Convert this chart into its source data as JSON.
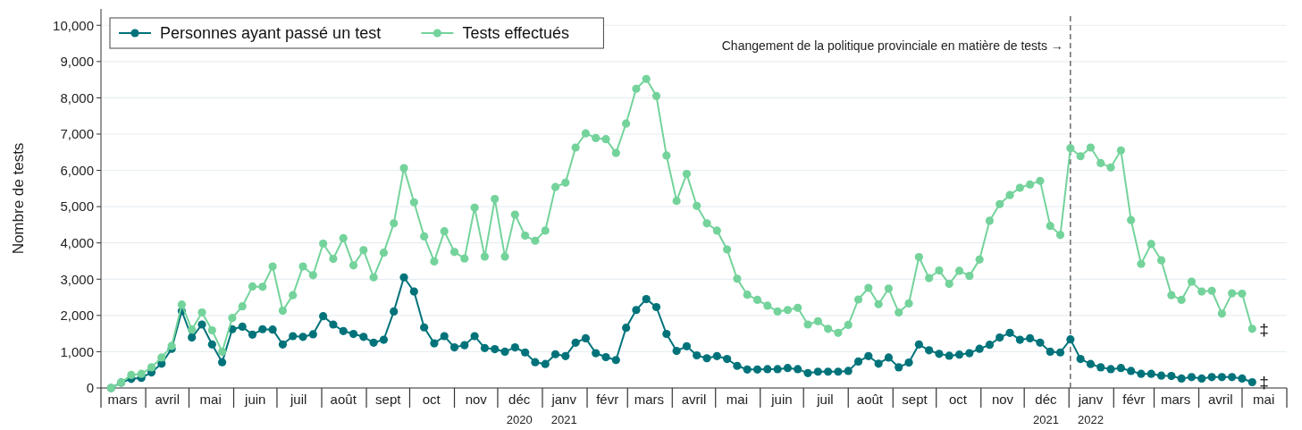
{
  "chart_data": {
    "type": "line",
    "ylabel": "Nombre de tests",
    "x": [
      "2020-03-08",
      "2020-03-15",
      "2020-03-22",
      "2020-03-29",
      "2020-04-05",
      "2020-04-12",
      "2020-04-19",
      "2020-04-26",
      "2020-05-03",
      "2020-05-10",
      "2020-05-17",
      "2020-05-24",
      "2020-05-31",
      "2020-06-07",
      "2020-06-14",
      "2020-06-21",
      "2020-06-28",
      "2020-07-05",
      "2020-07-12",
      "2020-07-19",
      "2020-07-26",
      "2020-08-02",
      "2020-08-09",
      "2020-08-16",
      "2020-08-23",
      "2020-08-30",
      "2020-09-06",
      "2020-09-13",
      "2020-09-20",
      "2020-09-27",
      "2020-10-04",
      "2020-10-11",
      "2020-10-18",
      "2020-10-25",
      "2020-11-01",
      "2020-11-08",
      "2020-11-15",
      "2020-11-22",
      "2020-11-29",
      "2020-12-06",
      "2020-12-13",
      "2020-12-20",
      "2020-12-27",
      "2021-01-03",
      "2021-01-10",
      "2021-01-17",
      "2021-01-24",
      "2021-01-31",
      "2021-02-07",
      "2021-02-14",
      "2021-02-21",
      "2021-02-28",
      "2021-03-07",
      "2021-03-14",
      "2021-03-21",
      "2021-03-28",
      "2021-04-04",
      "2021-04-11",
      "2021-04-18",
      "2021-04-25",
      "2021-05-02",
      "2021-05-09",
      "2021-05-16",
      "2021-05-23",
      "2021-05-30",
      "2021-06-06",
      "2021-06-13",
      "2021-06-20",
      "2021-06-27",
      "2021-07-04",
      "2021-07-11",
      "2021-07-18",
      "2021-07-25",
      "2021-08-01",
      "2021-08-08",
      "2021-08-15",
      "2021-08-22",
      "2021-08-29",
      "2021-09-05",
      "2021-09-12",
      "2021-09-19",
      "2021-09-26",
      "2021-10-03",
      "2021-10-10",
      "2021-10-17",
      "2021-10-24",
      "2021-10-31",
      "2021-11-07",
      "2021-11-14",
      "2021-11-21",
      "2021-11-28",
      "2021-12-05",
      "2021-12-12",
      "2021-12-19",
      "2021-12-26",
      "2022-01-02",
      "2022-01-09",
      "2022-01-16",
      "2022-01-23",
      "2022-01-30",
      "2022-02-06",
      "2022-02-13",
      "2022-02-20",
      "2022-02-27",
      "2022-03-06",
      "2022-03-13",
      "2022-03-20",
      "2022-03-27",
      "2022-04-03",
      "2022-04-10",
      "2022-04-17",
      "2022-04-24",
      "2022-05-01",
      "2022-05-08"
    ],
    "series": [
      {
        "name": "Personnes ayant passé un test",
        "color": "#00737a",
        "values": [
          0,
          150,
          250,
          280,
          430,
          670,
          1080,
          2120,
          1390,
          1750,
          1200,
          710,
          1620,
          1690,
          1470,
          1620,
          1610,
          1200,
          1430,
          1410,
          1480,
          1980,
          1750,
          1570,
          1490,
          1410,
          1250,
          1330,
          2110,
          3050,
          2660,
          1670,
          1230,
          1430,
          1120,
          1180,
          1430,
          1100,
          1070,
          1000,
          1120,
          980,
          710,
          660,
          930,
          880,
          1250,
          1370,
          960,
          850,
          770,
          1660,
          2150,
          2450,
          2230,
          1490,
          1020,
          1150,
          900,
          820,
          880,
          800,
          610,
          510,
          510,
          520,
          520,
          550,
          520,
          410,
          450,
          450,
          450,
          470,
          730,
          880,
          670,
          840,
          570,
          700,
          1200,
          1040,
          940,
          890,
          920,
          960,
          1080,
          1190,
          1390,
          1520,
          1330,
          1370,
          1250,
          1000,
          980,
          1340,
          800,
          660,
          570,
          520,
          550,
          470,
          390,
          390,
          340,
          330,
          260,
          300,
          260,
          300,
          300,
          300,
          260,
          160
        ]
      },
      {
        "name": "Tests effectués",
        "color": "#74d39b",
        "values": [
          0,
          150,
          360,
          390,
          570,
          840,
          1160,
          2300,
          1610,
          2080,
          1590,
          1000,
          1930,
          2250,
          2800,
          2790,
          3350,
          2130,
          2560,
          3350,
          3110,
          3980,
          3560,
          4130,
          3380,
          3800,
          3050,
          3730,
          4540,
          6060,
          5120,
          4180,
          3490,
          4320,
          3750,
          3570,
          4970,
          3620,
          5210,
          3620,
          4780,
          4200,
          4060,
          4340,
          5540,
          5660,
          6630,
          7020,
          6890,
          6860,
          6480,
          7290,
          8250,
          8520,
          8050,
          6410,
          5160,
          5900,
          5020,
          4540,
          4340,
          3820,
          3010,
          2570,
          2430,
          2270,
          2110,
          2150,
          2210,
          1750,
          1840,
          1630,
          1520,
          1740,
          2440,
          2760,
          2310,
          2740,
          2080,
          2330,
          3610,
          3030,
          3240,
          2870,
          3230,
          3090,
          3540,
          4610,
          5070,
          5320,
          5520,
          5610,
          5710,
          4470,
          4220,
          6610,
          6390,
          6630,
          6200,
          6080,
          6550,
          4630,
          3420,
          3970,
          3520,
          2560,
          2430,
          2930,
          2660,
          2680,
          2050,
          2610,
          2600,
          1630
        ]
      }
    ],
    "xlim": [
      "2020-03-01",
      "2022-06-01"
    ],
    "xticks": [
      {
        "value": "2020-03-01",
        "label": null
      },
      {
        "value": "2020-03-16",
        "label": "mars"
      },
      {
        "value": "2020-04-01",
        "label": null
      },
      {
        "value": "2020-04-16",
        "label": "avril"
      },
      {
        "value": "2020-05-01",
        "label": null
      },
      {
        "value": "2020-05-16",
        "label": "mai"
      },
      {
        "value": "2020-06-01",
        "label": null
      },
      {
        "value": "2020-06-16",
        "label": "juin"
      },
      {
        "value": "2020-07-01",
        "label": null
      },
      {
        "value": "2020-07-16",
        "label": "juil"
      },
      {
        "value": "2020-08-01",
        "label": null
      },
      {
        "value": "2020-08-16",
        "label": "août"
      },
      {
        "value": "2020-09-01",
        "label": null
      },
      {
        "value": "2020-09-16",
        "label": "sept"
      },
      {
        "value": "2020-10-01",
        "label": null
      },
      {
        "value": "2020-10-16",
        "label": "oct"
      },
      {
        "value": "2020-11-01",
        "label": null
      },
      {
        "value": "2020-11-16",
        "label": "nov"
      },
      {
        "value": "2020-12-01",
        "label": null
      },
      {
        "value": "2020-12-16",
        "label": "déc\n2020"
      },
      {
        "value": "2021-01-01",
        "label": null
      },
      {
        "value": "2021-01-16",
        "label": "janv\n2021"
      },
      {
        "value": "2021-02-01",
        "label": null
      },
      {
        "value": "2021-02-15",
        "label": "févr"
      },
      {
        "value": "2021-03-01",
        "label": null
      },
      {
        "value": "2021-03-16",
        "label": "mars"
      },
      {
        "value": "2021-04-01",
        "label": null
      },
      {
        "value": "2021-04-16",
        "label": "avril"
      },
      {
        "value": "2021-05-01",
        "label": null
      },
      {
        "value": "2021-05-16",
        "label": "mai"
      },
      {
        "value": "2021-06-01",
        "label": null
      },
      {
        "value": "2021-06-16",
        "label": "juin"
      },
      {
        "value": "2021-07-01",
        "label": null
      },
      {
        "value": "2021-07-16",
        "label": "juil"
      },
      {
        "value": "2021-08-01",
        "label": null
      },
      {
        "value": "2021-08-16",
        "label": "août"
      },
      {
        "value": "2021-09-01",
        "label": null
      },
      {
        "value": "2021-09-16",
        "label": "sept"
      },
      {
        "value": "2021-10-01",
        "label": null
      },
      {
        "value": "2021-10-16",
        "label": "oct"
      },
      {
        "value": "2021-11-01",
        "label": null
      },
      {
        "value": "2021-11-16",
        "label": "nov"
      },
      {
        "value": "2021-12-01",
        "label": null
      },
      {
        "value": "2021-12-16",
        "label": "déc\n2021"
      },
      {
        "value": "2022-01-01",
        "label": null
      },
      {
        "value": "2022-01-16",
        "label": "janv\n2022"
      },
      {
        "value": "2022-02-01",
        "label": null
      },
      {
        "value": "2022-02-15",
        "label": "févr"
      },
      {
        "value": "2022-03-01",
        "label": null
      },
      {
        "value": "2022-03-16",
        "label": "mars"
      },
      {
        "value": "2022-04-01",
        "label": null
      },
      {
        "value": "2022-04-16",
        "label": "avril"
      },
      {
        "value": "2022-05-01",
        "label": null
      },
      {
        "value": "2022-05-16",
        "label": "mai"
      },
      {
        "value": "2022-06-01",
        "label": null
      }
    ],
    "ylim": [
      0,
      10450
    ],
    "yticks": [
      0,
      {
        "value": 1000,
        "label": "1,000"
      },
      {
        "value": 2000,
        "label": "2,000"
      },
      {
        "value": 3000,
        "label": "3,000"
      },
      {
        "value": 4000,
        "label": "4,000"
      },
      {
        "value": 5000,
        "label": "5,000"
      },
      {
        "value": 6000,
        "label": "6,000"
      },
      {
        "value": 7000,
        "label": "7,000"
      },
      {
        "value": 8000,
        "label": "8,000"
      },
      {
        "value": 9000,
        "label": "9,000"
      },
      {
        "value": 10000,
        "label": "10,000"
      }
    ],
    "grid": "y",
    "legend": "top left",
    "marker": "circle",
    "line_style": "solid",
    "ref_lines": [
      {
        "axis": "x",
        "value": "2022-01-02",
        "label": "Changement de la politique provinciale en matière de tests →",
        "color": "#555555",
        "line_style": "dashed"
      }
    ],
    "annotations": [
      {
        "text": "‡",
        "x": "2022-05-08",
        "y": 1630
      },
      {
        "text": "‡",
        "x": "2022-05-08",
        "y": 160
      }
    ]
  }
}
